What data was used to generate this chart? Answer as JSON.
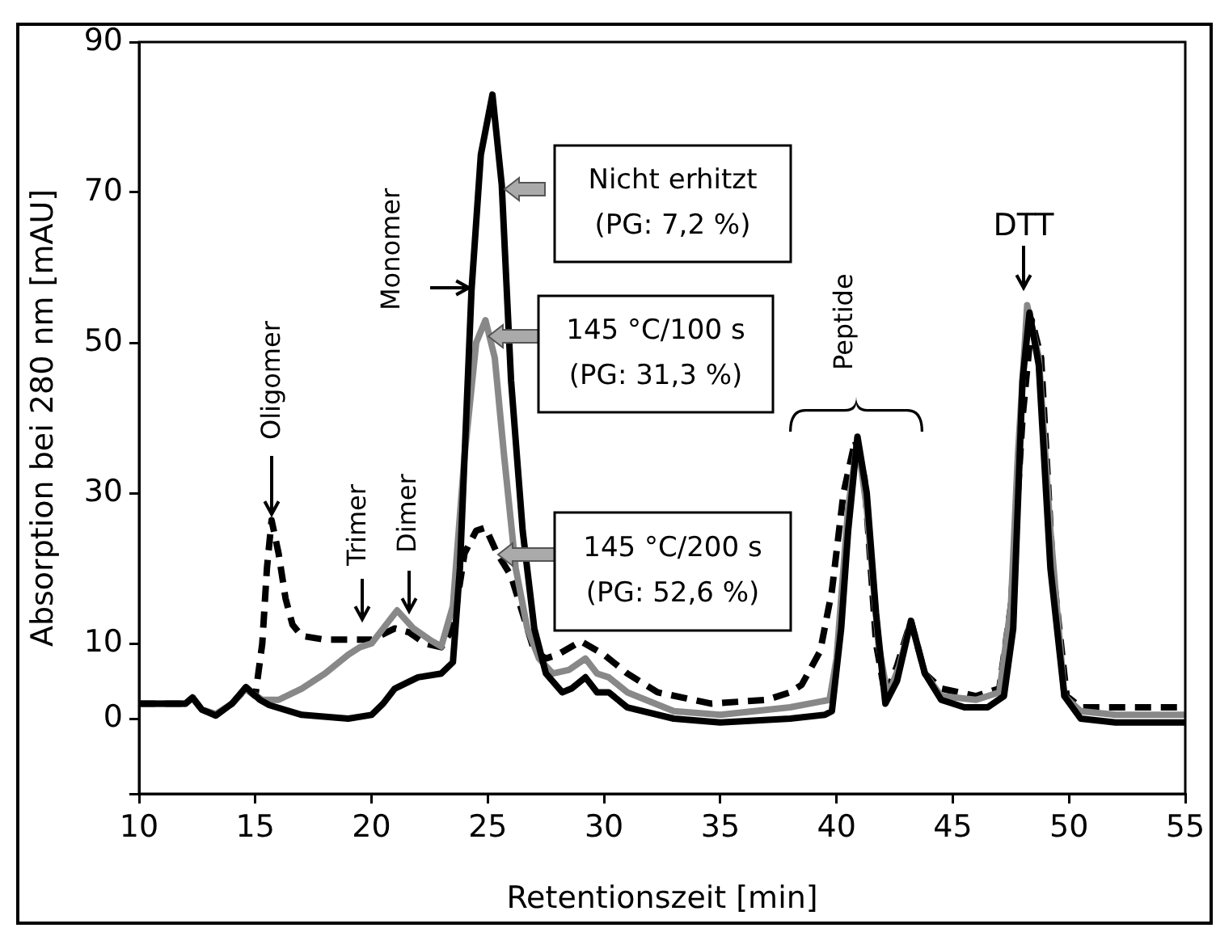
{
  "chart_data": {
    "type": "line",
    "xlabel": "Retentionszeit [min]",
    "ylabel": "Absorption bei 280 nm [mAU]",
    "xlim": [
      10,
      55
    ],
    "xticks": [
      10,
      15,
      20,
      25,
      30,
      35,
      40,
      45,
      50,
      55
    ],
    "ylim": [
      -10,
      90
    ],
    "yticks": [
      {
        "value": -10,
        "label": null
      },
      0,
      10,
      30,
      50,
      70,
      90
    ],
    "grid": false,
    "legend": false,
    "series": [
      {
        "color": "#000000",
        "line_style": "solid",
        "x": [
          10,
          12,
          12.3,
          12.7,
          13.3,
          14,
          14.6,
          15.2,
          15.6,
          17,
          19,
          20,
          20.5,
          21,
          22,
          23,
          23.5,
          23.8,
          24.3,
          24.7,
          25.2,
          25.6,
          26,
          26.5,
          27,
          27.5,
          28.2,
          28.6,
          29.2,
          29.7,
          30.2,
          31,
          33,
          35,
          38,
          39.5,
          39.8,
          40.2,
          40.5,
          40.9,
          41.3,
          41.7,
          42.1,
          42.6,
          43.2,
          43.8,
          44.5,
          45.5,
          46.5,
          47.2,
          47.6,
          48,
          48.3,
          48.7,
          49.2,
          49.8,
          50.5,
          52,
          55
        ],
        "values": [
          2,
          2,
          2.8,
          1.2,
          0.4,
          2,
          4.2,
          2.5,
          1.8,
          0.5,
          0,
          0.5,
          2,
          4,
          5.5,
          6,
          7.5,
          20,
          57,
          75,
          83,
          71,
          45,
          25,
          12,
          6,
          3.5,
          4,
          5.5,
          3.5,
          3.5,
          1.5,
          0,
          -0.5,
          0,
          0.5,
          1,
          12,
          25,
          37.5,
          30,
          14,
          2,
          5,
          13,
          6,
          2.5,
          1.5,
          1.5,
          3,
          12,
          45,
          54,
          47,
          20,
          3,
          0,
          -0.5,
          -0.5
        ]
      },
      {
        "color": "#888888",
        "line_style": "solid",
        "x": [
          10,
          12,
          12.3,
          12.7,
          13.3,
          14,
          14.6,
          15.3,
          16,
          17,
          18,
          19,
          19.5,
          20,
          20.5,
          21.1,
          21.8,
          22.5,
          23,
          23.5,
          24,
          24.5,
          24.9,
          25.3,
          25.7,
          26.2,
          26.7,
          27.2,
          27.8,
          28.5,
          29.2,
          29.7,
          30.2,
          31,
          33,
          35,
          38,
          39.7,
          40,
          40.5,
          40.9,
          41.3,
          41.8,
          42.2,
          42.7,
          43.2,
          43.8,
          44.5,
          46,
          47,
          47.5,
          47.8,
          48.2,
          48.7,
          49.2,
          49.8,
          50.5,
          52,
          55
        ],
        "values": [
          2,
          2,
          2.8,
          1.2,
          0.6,
          2,
          4,
          2.5,
          2.5,
          4,
          6,
          8.5,
          9.5,
          10,
          12,
          14.4,
          12,
          10.5,
          9.6,
          15,
          35,
          50,
          53,
          48,
          35,
          20,
          12,
          8,
          6,
          6.5,
          8,
          6,
          5.5,
          3.5,
          1,
          0.5,
          1.5,
          2.5,
          8,
          28,
          37,
          28,
          10,
          3,
          7,
          13,
          6,
          3,
          2.5,
          3.5,
          15,
          35,
          55,
          48,
          25,
          3,
          1,
          0.5,
          0.5
        ]
      },
      {
        "color": "#000000",
        "line_style": "dashed",
        "x": [
          10,
          12,
          12.3,
          12.7,
          13.3,
          14,
          14.6,
          15,
          15.3,
          15.5,
          15.7,
          16,
          16.3,
          16.6,
          17,
          18,
          19,
          20,
          21,
          21.6,
          22.3,
          23,
          23.5,
          24,
          24.5,
          24.9,
          25.4,
          26,
          26.5,
          27,
          27.5,
          28,
          29,
          30,
          31,
          32.3,
          34.6,
          37,
          38,
          38.5,
          39.3,
          39.8,
          40.3,
          40.8,
          41.2,
          41.7,
          42.1,
          42.6,
          43.2,
          43.8,
          44.5,
          46,
          47,
          47.5,
          48,
          48.4,
          48.8,
          49.3,
          49.9,
          50.5,
          52,
          55
        ],
        "values": [
          2,
          2,
          2.8,
          1.2,
          0.5,
          2,
          4,
          3,
          10,
          20,
          26.4,
          22,
          16,
          12.5,
          11,
          10.5,
          10.5,
          10.5,
          12,
          11.5,
          10,
          9.5,
          12,
          22,
          25,
          25.4,
          22,
          19,
          14,
          9,
          8,
          8.5,
          10.3,
          8.5,
          6,
          3.5,
          2,
          2.5,
          3.5,
          4.5,
          9,
          17,
          30,
          37,
          32,
          10,
          3,
          7,
          13,
          6,
          4,
          3,
          4,
          15,
          40,
          53,
          48,
          20,
          3,
          1.5,
          1.5,
          1.5
        ]
      }
    ],
    "annotations": [
      "Oligomer",
      "Trimer",
      "Dimer",
      "Monomer",
      "Nicht erhitzt\n(PG: 7,2 %)",
      "145 °C/100 s\n(PG: 31,3 %)",
      "145 °C/200 s\n(PG: 52,6 %)",
      "Peptide",
      "DTT"
    ]
  }
}
